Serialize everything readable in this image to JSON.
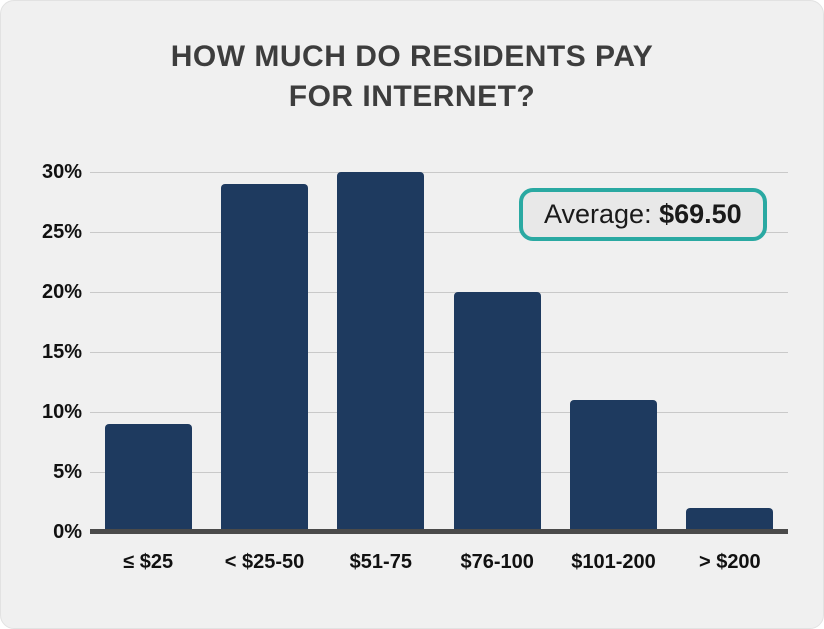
{
  "header": {
    "title_line1": "HOW MUCH DO RESIDENTS PAY",
    "title_line2": "FOR INTERNET?"
  },
  "badge": {
    "label": "Average:",
    "value": "$69.50"
  },
  "chart_data": {
    "type": "bar",
    "title": "HOW MUCH DO RESIDENTS PAY FOR INTERNET?",
    "categories": [
      "≤ $25",
      "< $25-50",
      "$51-75",
      "$76-100",
      "$101-200",
      "> $200"
    ],
    "values": [
      9,
      29,
      30,
      20,
      11,
      2
    ],
    "xlabel": "",
    "ylabel": "",
    "ylim": [
      0,
      32
    ],
    "yticks": [
      0,
      5,
      10,
      15,
      20,
      25,
      30
    ],
    "ytick_suffix": "%",
    "grid": true,
    "legend": false,
    "annotation": {
      "label": "Average:",
      "value": "$69.50"
    },
    "colors": {
      "bar": "#1e3a5f",
      "background": "#f0f0f0",
      "grid": "#c9c9c9",
      "axis": "#4a4a4a",
      "badge_border": "#2aa9a2",
      "badge_bg": "#e8e8e8",
      "title": "#3d3d3d",
      "tick_text": "#111111"
    }
  }
}
